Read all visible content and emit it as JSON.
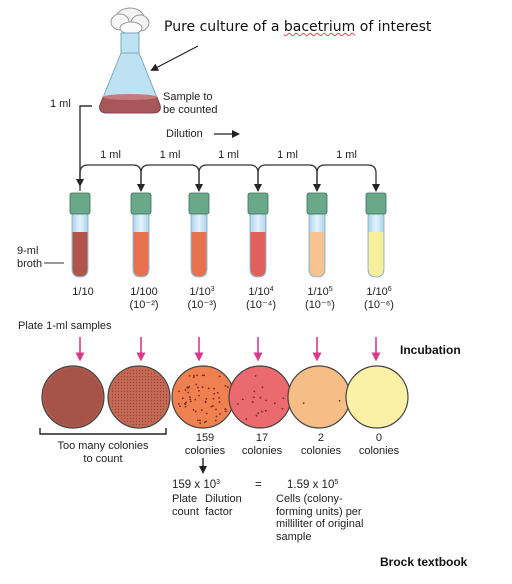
{
  "title": {
    "prefix": "Pure culture of a ",
    "misspelled_word": "bacetrium",
    "suffix": " of interest"
  },
  "flask": {
    "sample_label": [
      "Sample to",
      "be counted"
    ],
    "transfer_label": "1 ml"
  },
  "dilution_label": "Dilution",
  "transfer_volumes": [
    "1 ml",
    "1 ml",
    "1 ml",
    "1 ml",
    "1 ml"
  ],
  "broth_label": [
    "9-ml",
    "broth"
  ],
  "tubes": [
    {
      "label": "1/10",
      "power_base": "",
      "power_exp": "",
      "sub": "",
      "fill": "#b1544d"
    },
    {
      "label": "1/100",
      "power_base": "",
      "power_exp": "",
      "sub": "(10⁻²)",
      "fill": "#e8704f"
    },
    {
      "label": "1/10",
      "power_base": "",
      "power_exp": "3",
      "sub": "(10⁻³)",
      "fill": "#e8714f"
    },
    {
      "label": "1/10",
      "power_base": "",
      "power_exp": "4",
      "sub": "(10⁻⁴)",
      "fill": "#e2605a"
    },
    {
      "label": "1/10",
      "power_base": "",
      "power_exp": "5",
      "sub": "(10⁻⁵)",
      "fill": "#f6c28f"
    },
    {
      "label": "1/10",
      "power_base": "",
      "power_exp": "6",
      "sub": "(10⁻⁶)",
      "fill": "#f8ef9c"
    }
  ],
  "plate_samples_label": "Plate 1-ml samples",
  "incubation_label": "Incubation",
  "plates": [
    {
      "fill": "#b05a4e",
      "count": ""
    },
    {
      "fill": "#c66a55",
      "count": ""
    },
    {
      "fill": "#ef8050",
      "count": "159",
      "unit": "colonies"
    },
    {
      "fill": "#ea6a6e",
      "count": "17",
      "unit": "colonies"
    },
    {
      "fill": "#f7bd86",
      "count": "2",
      "unit": "colonies"
    },
    {
      "fill": "#fbf1a6",
      "count": "0",
      "unit": "colonies"
    }
  ],
  "too_many_label": [
    "Too many colonies",
    "to count"
  ],
  "calculation": {
    "plate_count": "159",
    "times": "x",
    "dilution_base": "10",
    "dilution_exp": "3",
    "plate_count_label": [
      "Plate",
      "count"
    ],
    "dilution_factor_label": [
      "Dilution",
      "factor"
    ],
    "equals": "=",
    "result_mantissa": "1.59",
    "result_base": "10",
    "result_exp": "5",
    "result_label": [
      "Cells (colony-",
      "forming units) per",
      "milliliter of original",
      "sample"
    ]
  },
  "source": "Brock textbook",
  "colors": {
    "cap_green": "#6aa88a",
    "tube_blue": "#c9e6f5",
    "arrow_pink": "#d63c8a",
    "flask_glass": "#bfe2f2"
  }
}
